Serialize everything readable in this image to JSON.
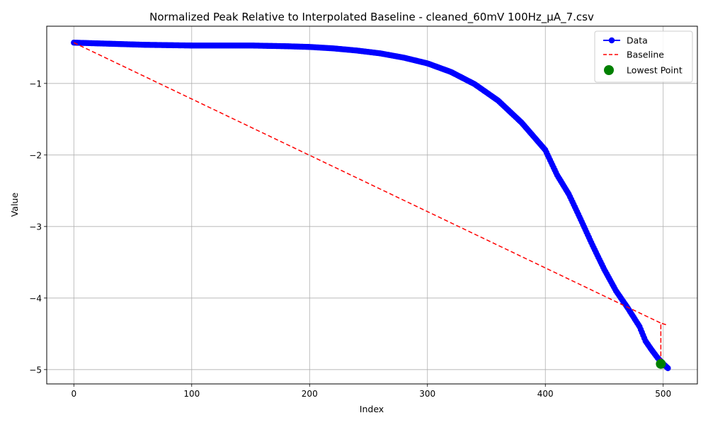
{
  "chart_data": {
    "type": "line",
    "title": "Normalized Peak Relative to Interpolated Baseline - cleaned_60mV 100Hz_μA_7.csv",
    "xlabel": "Index",
    "ylabel": "Value",
    "xlim": [
      -23,
      529
    ],
    "ylim": [
      -5.2,
      -0.2
    ],
    "xticks": [
      0,
      100,
      200,
      300,
      400,
      500
    ],
    "yticks": [
      -5,
      -4,
      -3,
      -2,
      -1
    ],
    "ytick_labels": [
      "−5",
      "−4",
      "−3",
      "−2",
      "−1"
    ],
    "grid": true,
    "legend_position": "top-right",
    "data_curve": [
      [
        0,
        -0.43
      ],
      [
        20,
        -0.44
      ],
      [
        40,
        -0.45
      ],
      [
        60,
        -0.46
      ],
      [
        100,
        -0.47
      ],
      [
        150,
        -0.47
      ],
      [
        180,
        -0.48
      ],
      [
        200,
        -0.49
      ],
      [
        220,
        -0.51
      ],
      [
        240,
        -0.54
      ],
      [
        260,
        -0.58
      ],
      [
        280,
        -0.64
      ],
      [
        300,
        -0.72
      ],
      [
        320,
        -0.84
      ],
      [
        340,
        -1.01
      ],
      [
        360,
        -1.24
      ],
      [
        380,
        -1.55
      ],
      [
        400,
        -1.93
      ],
      [
        410,
        -2.28
      ],
      [
        420,
        -2.55
      ],
      [
        430,
        -2.9
      ],
      [
        440,
        -3.26
      ],
      [
        450,
        -3.6
      ],
      [
        460,
        -3.9
      ],
      [
        470,
        -4.14
      ],
      [
        480,
        -4.4
      ],
      [
        485,
        -4.6
      ],
      [
        490,
        -4.72
      ],
      [
        495,
        -4.83
      ],
      [
        500,
        -4.92
      ],
      [
        504,
        -4.98
      ]
    ],
    "series": [
      {
        "name": "Data",
        "color": "#0000ff",
        "style": "line-with-markers",
        "n_points": 505
      },
      {
        "name": "Baseline",
        "color": "#ff0000",
        "style": "dashed",
        "points": [
          [
            0,
            -0.43
          ],
          [
            498,
            -4.35
          ],
          [
            498,
            -4.92
          ],
          [
            498,
            -4.35
          ],
          [
            504,
            -4.38
          ]
        ]
      },
      {
        "name": "Lowest Point",
        "color": "#008000",
        "style": "scatter",
        "points": [
          [
            498,
            -4.92
          ]
        ]
      }
    ]
  }
}
